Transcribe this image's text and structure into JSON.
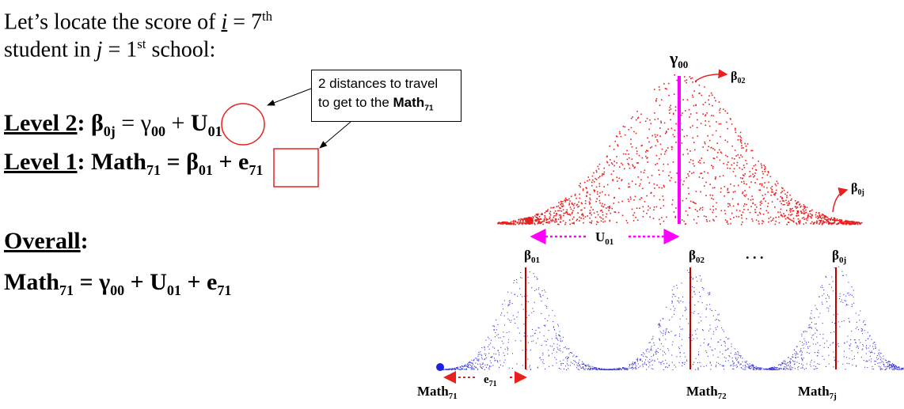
{
  "intro": {
    "line1_prefix": "Let’s locate the score of ",
    "line1_i": "i",
    "line1_mid": " = 7",
    "line1_sup": "th",
    "line2_prefix": "student in ",
    "line2_j": "j",
    "line2_mid": " = 1",
    "line2_sup": "st",
    "line2_suffix": " school:"
  },
  "level2": {
    "label": "Level 2",
    "colon": ":",
    "beta": "β",
    "beta_sub": "0j",
    "eq_gamma": " = γ",
    "gamma_sub": "00",
    "plus": " + ",
    "u": "U",
    "u_sub": "01"
  },
  "level1": {
    "label": "Level 1",
    "colon": ":",
    "math": "Math",
    "math_sub": "71",
    "eq_beta": " = β",
    "beta_sub": "01",
    "plus": " + ",
    "e": "e",
    "e_sub": "71"
  },
  "overall": {
    "label": "Overall",
    "colon": ":",
    "math": "Math",
    "math_sub": "71",
    "eq_gamma": " = γ",
    "gamma_sub": "00",
    "plus_u": " + U",
    "u_sub": "01",
    "plus_e": " + e",
    "e_sub": "71"
  },
  "callout": {
    "line1": "2 distances to travel",
    "line2_prefix": "to get to the ",
    "line2_math": "Math",
    "line2_sub": "71"
  },
  "diagram": {
    "gamma": "γ",
    "gamma_sub": "00",
    "top_beta02": "β",
    "top_beta02_sub": "02",
    "top_beta0j": "β",
    "top_beta0j_sub": "0j",
    "u_label": "U",
    "u_sub": "01",
    "beta01": "β",
    "beta01_sub": "01",
    "beta02": "β",
    "beta02_sub": "02",
    "dots": ". . .",
    "beta0j": "β",
    "beta0j_sub": "0j",
    "e_label": "e",
    "e_sub": "71",
    "math71": "Math",
    "math71_sub": "71",
    "math72": "Math",
    "math72_sub": "72",
    "math7j": "Math",
    "math7j_sub": "7j"
  },
  "colors": {
    "red": "#e8201e",
    "blue": "#3f3fd8",
    "magenta": "#ff00ff",
    "dark_red": "#c00000"
  }
}
